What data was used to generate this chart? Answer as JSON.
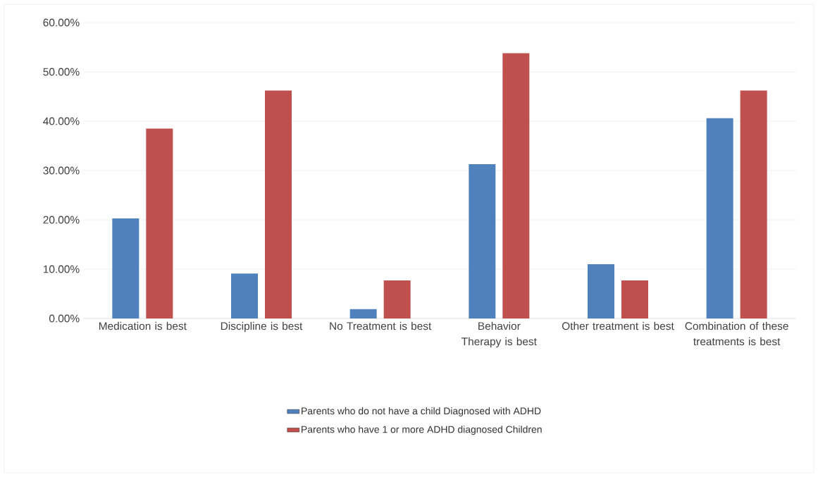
{
  "chart_data": {
    "type": "bar",
    "categories": [
      "Medication is best",
      "Discipline is best",
      "No Treatment is best",
      "Behavior Therapy is best",
      "Other treatment is best",
      "Combination of these treatments is best"
    ],
    "series": [
      {
        "name": "Parents who do not have a child Diagnosed with ADHD",
        "color": "#4f81bd",
        "values": [
          20.3,
          9.1,
          1.9,
          31.3,
          11.0,
          40.6
        ]
      },
      {
        "name": "Parents who have 1 or more ADHD diagnosed Children",
        "color": "#c0504d",
        "values": [
          38.5,
          46.2,
          7.7,
          53.8,
          7.7,
          46.2
        ]
      }
    ],
    "ylim": [
      0,
      60
    ],
    "yticks": [
      {
        "value": 0,
        "label": "0.00%"
      },
      {
        "value": 10,
        "label": "10.00%"
      },
      {
        "value": 20,
        "label": "20.00%"
      },
      {
        "value": 30,
        "label": "30.00%"
      },
      {
        "value": 40,
        "label": "40.00%"
      },
      {
        "value": 50,
        "label": "50.00%"
      },
      {
        "value": 60,
        "label": "60.00%"
      }
    ],
    "grid": "y",
    "legend": "bottom"
  }
}
